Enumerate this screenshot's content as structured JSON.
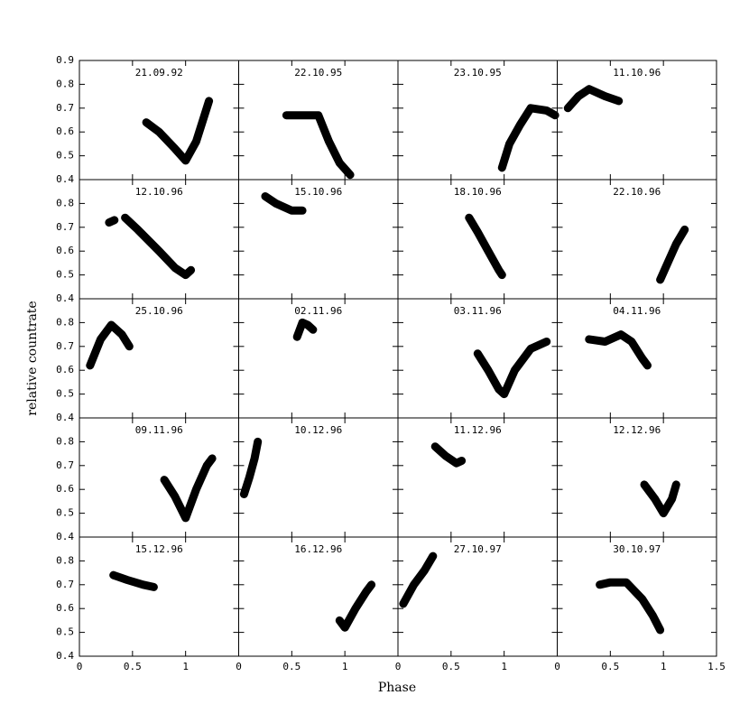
{
  "chart_data": {
    "type": "line",
    "xlabel": "Phase",
    "ylabel": "relative countrate",
    "color": "#000000",
    "xlim": [
      0,
      1.5
    ],
    "ylim": [
      0.4,
      0.9
    ],
    "xticks": [
      0,
      0.5,
      1,
      1.5
    ],
    "yticks": [
      0.4,
      0.5,
      0.6,
      0.7,
      0.8,
      0.9
    ],
    "panels": [
      {
        "title": "21.09.92",
        "x": [
          0.63,
          0.75,
          0.9,
          1.0,
          1.1,
          1.22
        ],
        "values": [
          0.64,
          0.6,
          0.53,
          0.48,
          0.56,
          0.73
        ]
      },
      {
        "title": "22.10.95",
        "x": [
          0.45,
          0.6,
          0.75,
          0.85,
          0.95,
          1.05
        ],
        "values": [
          0.67,
          0.67,
          0.67,
          0.56,
          0.47,
          0.42
        ]
      },
      {
        "title": "23.10.95",
        "x": [
          0.98,
          1.05,
          1.15,
          1.25,
          1.4,
          1.48
        ],
        "values": [
          0.45,
          0.55,
          0.63,
          0.7,
          0.69,
          0.67
        ]
      },
      {
        "title": "11.10.96",
        "x": [
          0.1,
          0.2,
          0.3,
          0.45,
          0.58
        ],
        "values": [
          0.7,
          0.75,
          0.78,
          0.75,
          0.73
        ]
      },
      {
        "title": "12.10.96",
        "x": [
          0.28,
          0.33,
          0.38,
          0.43,
          0.55,
          0.75,
          0.9,
          1.0,
          1.05
        ],
        "values": [
          0.72,
          0.73,
          null,
          0.74,
          0.69,
          0.6,
          0.53,
          0.5,
          0.52
        ]
      },
      {
        "title": "15.10.96",
        "x": [
          0.25,
          0.35,
          0.5,
          0.6
        ],
        "values": [
          0.83,
          0.8,
          0.77,
          0.77
        ]
      },
      {
        "title": "18.10.96",
        "x": [
          0.67,
          0.75,
          0.85,
          0.95,
          0.98
        ],
        "values": [
          0.74,
          0.68,
          0.6,
          0.52,
          0.5
        ]
      },
      {
        "title": "22.10.96",
        "x": [
          0.97,
          1.05,
          1.12,
          1.2
        ],
        "values": [
          0.48,
          0.56,
          0.63,
          0.69
        ]
      },
      {
        "title": "25.10.96",
        "x": [
          0.1,
          0.2,
          0.3,
          0.4,
          0.47
        ],
        "values": [
          0.62,
          0.73,
          0.79,
          0.75,
          0.7
        ]
      },
      {
        "title": "02.11.96",
        "x": [
          0.55,
          0.6,
          0.65,
          0.7
        ],
        "values": [
          0.74,
          0.8,
          0.79,
          0.77
        ]
      },
      {
        "title": "03.11.96",
        "x": [
          0.75,
          0.85,
          0.95,
          1.0,
          1.1,
          1.25,
          1.4
        ],
        "values": [
          0.67,
          0.6,
          0.52,
          0.5,
          0.6,
          0.69,
          0.72
        ]
      },
      {
        "title": "04.11.96",
        "x": [
          0.3,
          0.45,
          0.6,
          0.7,
          0.8,
          0.85
        ],
        "values": [
          0.73,
          0.72,
          0.75,
          0.72,
          0.65,
          0.62
        ]
      },
      {
        "title": "09.11.96",
        "x": [
          0.8,
          0.9,
          1.0,
          1.1,
          1.2,
          1.25
        ],
        "values": [
          0.64,
          0.57,
          0.48,
          0.6,
          0.7,
          0.73
        ]
      },
      {
        "title": "10.12.96",
        "x": [
          0.05,
          0.1,
          0.15,
          0.18
        ],
        "values": [
          0.58,
          0.65,
          0.73,
          0.8
        ]
      },
      {
        "title": "11.12.96",
        "x": [
          0.35,
          0.45,
          0.55,
          0.6
        ],
        "values": [
          0.78,
          0.74,
          0.71,
          0.72
        ]
      },
      {
        "title": "12.12.96",
        "x": [
          0.82,
          0.92,
          1.0,
          1.08,
          1.12
        ],
        "values": [
          0.62,
          0.56,
          0.5,
          0.56,
          0.62
        ]
      },
      {
        "title": "15.12.96",
        "x": [
          0.32,
          0.45,
          0.6,
          0.7
        ],
        "values": [
          0.74,
          0.72,
          0.7,
          0.69
        ]
      },
      {
        "title": "16.12.96",
        "x": [
          0.95,
          1.0,
          1.1,
          1.2,
          1.25
        ],
        "values": [
          0.55,
          0.52,
          0.6,
          0.67,
          0.7
        ]
      },
      {
        "title": "27.10.97",
        "x": [
          0.05,
          0.15,
          0.25,
          0.33
        ],
        "values": [
          0.62,
          0.7,
          0.76,
          0.82
        ]
      },
      {
        "title": "30.10.97",
        "x": [
          0.4,
          0.5,
          0.65,
          0.8,
          0.9,
          0.97
        ],
        "values": [
          0.7,
          0.71,
          0.71,
          0.64,
          0.57,
          0.51
        ]
      }
    ]
  }
}
